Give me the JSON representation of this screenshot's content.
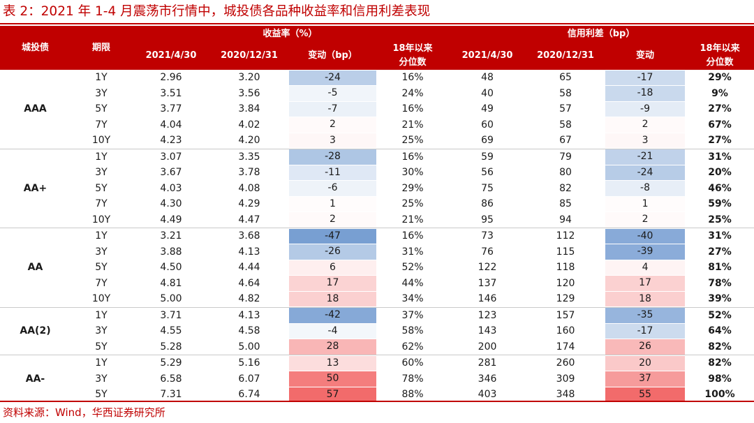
{
  "title": "表 2：2021 年 1-4 月震荡市行情中，城投债各品种收益率和信用利差表现",
  "header": {
    "col_grade": "城投债",
    "col_term": "期限",
    "group_yield": "收益率（%）",
    "group_spread": "信用利差（bp）",
    "yield_d1": "2021/4/30",
    "yield_d2": "2020/12/31",
    "yield_change": "变动（bp）",
    "yield_pct_line1": "18年以来",
    "yield_pct_line2": "分位数",
    "spread_d1": "2021/4/30",
    "spread_d2": "2020/12/31",
    "spread_change": "变动",
    "spread_pct_line1": "18年以来",
    "spread_pct_line2": "分位数"
  },
  "colors": {
    "accent": "#c00000",
    "negative_strong": "#5b8ac9",
    "positive_strong": "#f26b6b"
  },
  "groups": [
    {
      "grade": "AAA",
      "rows": [
        {
          "term": "1Y",
          "y1": "2.96",
          "y2": "3.20",
          "ychg": "-24",
          "yp": "16%",
          "s1": "48",
          "s2": "65",
          "schg": "-17",
          "sp": "29%"
        },
        {
          "term": "3Y",
          "y1": "3.51",
          "y2": "3.56",
          "ychg": "-5",
          "yp": "24%",
          "s1": "40",
          "s2": "58",
          "schg": "-18",
          "sp": "9%"
        },
        {
          "term": "5Y",
          "y1": "3.77",
          "y2": "3.84",
          "ychg": "-7",
          "yp": "16%",
          "s1": "49",
          "s2": "57",
          "schg": "-9",
          "sp": "27%"
        },
        {
          "term": "7Y",
          "y1": "4.04",
          "y2": "4.02",
          "ychg": "2",
          "yp": "21%",
          "s1": "60",
          "s2": "58",
          "schg": "2",
          "sp": "67%"
        },
        {
          "term": "10Y",
          "y1": "4.23",
          "y2": "4.20",
          "ychg": "3",
          "yp": "25%",
          "s1": "69",
          "s2": "67",
          "schg": "3",
          "sp": "27%"
        }
      ]
    },
    {
      "grade": "AA+",
      "rows": [
        {
          "term": "1Y",
          "y1": "3.07",
          "y2": "3.35",
          "ychg": "-28",
          "yp": "16%",
          "s1": "59",
          "s2": "79",
          "schg": "-21",
          "sp": "31%"
        },
        {
          "term": "3Y",
          "y1": "3.67",
          "y2": "3.78",
          "ychg": "-11",
          "yp": "30%",
          "s1": "56",
          "s2": "80",
          "schg": "-24",
          "sp": "20%"
        },
        {
          "term": "5Y",
          "y1": "4.03",
          "y2": "4.08",
          "ychg": "-6",
          "yp": "29%",
          "s1": "75",
          "s2": "82",
          "schg": "-8",
          "sp": "46%"
        },
        {
          "term": "7Y",
          "y1": "4.30",
          "y2": "4.29",
          "ychg": "1",
          "yp": "25%",
          "s1": "86",
          "s2": "85",
          "schg": "1",
          "sp": "59%"
        },
        {
          "term": "10Y",
          "y1": "4.49",
          "y2": "4.47",
          "ychg": "2",
          "yp": "21%",
          "s1": "95",
          "s2": "94",
          "schg": "2",
          "sp": "25%"
        }
      ]
    },
    {
      "grade": "AA",
      "rows": [
        {
          "term": "1Y",
          "y1": "3.21",
          "y2": "3.68",
          "ychg": "-47",
          "yp": "16%",
          "s1": "73",
          "s2": "112",
          "schg": "-40",
          "sp": "31%"
        },
        {
          "term": "3Y",
          "y1": "3.88",
          "y2": "4.13",
          "ychg": "-26",
          "yp": "31%",
          "s1": "76",
          "s2": "115",
          "schg": "-39",
          "sp": "27%"
        },
        {
          "term": "5Y",
          "y1": "4.50",
          "y2": "4.44",
          "ychg": "6",
          "yp": "52%",
          "s1": "122",
          "s2": "118",
          "schg": "4",
          "sp": "81%"
        },
        {
          "term": "7Y",
          "y1": "4.81",
          "y2": "4.64",
          "ychg": "17",
          "yp": "44%",
          "s1": "137",
          "s2": "120",
          "schg": "17",
          "sp": "78%"
        },
        {
          "term": "10Y",
          "y1": "5.00",
          "y2": "4.82",
          "ychg": "18",
          "yp": "34%",
          "s1": "146",
          "s2": "129",
          "schg": "18",
          "sp": "39%"
        }
      ]
    },
    {
      "grade": "AA(2)",
      "rows": [
        {
          "term": "1Y",
          "y1": "3.71",
          "y2": "4.13",
          "ychg": "-42",
          "yp": "37%",
          "s1": "123",
          "s2": "157",
          "schg": "-35",
          "sp": "52%"
        },
        {
          "term": "3Y",
          "y1": "4.55",
          "y2": "4.58",
          "ychg": "-4",
          "yp": "58%",
          "s1": "143",
          "s2": "160",
          "schg": "-17",
          "sp": "64%"
        },
        {
          "term": "5Y",
          "y1": "5.28",
          "y2": "5.00",
          "ychg": "28",
          "yp": "62%",
          "s1": "200",
          "s2": "174",
          "schg": "26",
          "sp": "82%"
        }
      ]
    },
    {
      "grade": "AA-",
      "rows": [
        {
          "term": "1Y",
          "y1": "5.29",
          "y2": "5.16",
          "ychg": "13",
          "yp": "60%",
          "s1": "281",
          "s2": "260",
          "schg": "20",
          "sp": "82%"
        },
        {
          "term": "3Y",
          "y1": "6.58",
          "y2": "6.07",
          "ychg": "50",
          "yp": "78%",
          "s1": "346",
          "s2": "309",
          "schg": "37",
          "sp": "98%"
        },
        {
          "term": "5Y",
          "y1": "7.31",
          "y2": "6.74",
          "ychg": "57",
          "yp": "88%",
          "s1": "403",
          "s2": "348",
          "schg": "55",
          "sp": "100%"
        }
      ]
    }
  ],
  "source": "资料来源：Wind，华西证券研究所"
}
